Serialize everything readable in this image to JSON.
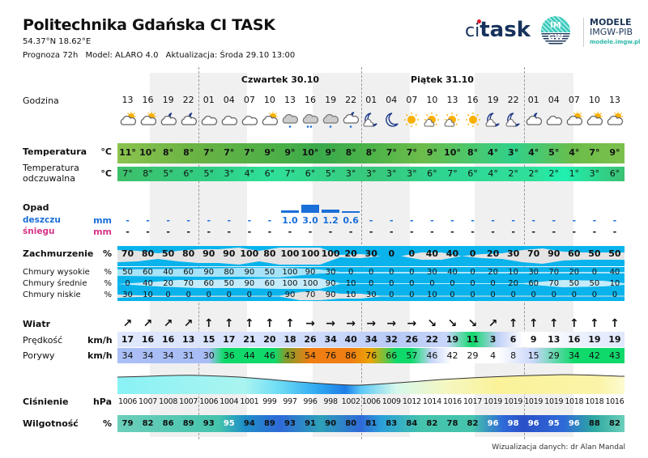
{
  "header": {
    "title": "Politechnika Gdańska CI TASK",
    "coords": "54.37°N  18.62°E",
    "forecast": "Prognoza 72h",
    "model": "Model:  ALARO 4.0",
    "updated": "Aktualizacja:  Środa 29.10 13:00"
  },
  "logos": {
    "citask_ci": "ci",
    "citask_task": "task",
    "imgw_top": "IM",
    "imgw_bottom": "GW",
    "modele_line1": "MODELE",
    "modele_line2": "IMGW-PIB",
    "modele_url": "modele.imgw.pl"
  },
  "days": [
    {
      "label": "Czwartek 30.10"
    },
    {
      "label": "Piątek 31.10"
    }
  ],
  "labels": {
    "hours": "Godzina",
    "temp": "Temperatura",
    "temp_unit": "°C",
    "feels1": "Temperatura",
    "feels2": "odczuwalna",
    "feels_unit": "°C",
    "precip": "Opad",
    "rain": "deszczu",
    "rain_unit": "mm",
    "snow": "śniegu",
    "snow_unit": "mm",
    "cloud": "Zachmurzenie",
    "cloud_unit": "%",
    "cloud_high": "Chmury wysokie",
    "cloud_mid": "Chmury średnie",
    "cloud_low": "Chmury niskie",
    "pct": "%",
    "wind": "Wiatr",
    "speed": "Prędkość",
    "gusts": "Porywy",
    "kmh": "km/h",
    "pressure": "Ciśnienie",
    "hpa": "hPa",
    "humidity": "Wilgotność",
    "hum_unit": "%"
  },
  "hours": [
    "13",
    "16",
    "19",
    "22",
    "01",
    "04",
    "07",
    "10",
    "13",
    "16",
    "19",
    "22",
    "01",
    "04",
    "07",
    "10",
    "13",
    "16",
    "19",
    "22",
    "01",
    "04",
    "07",
    "10",
    "13"
  ],
  "icons": [
    "partly-cloudy-day",
    "partly-cloudy-day",
    "partly-cloudy-night",
    "partly-cloudy-night",
    "cloudy",
    "cloudy",
    "cloudy",
    "partly-cloudy-day",
    "rain-cloud",
    "heavy-rain-cloud",
    "rain-cloud",
    "partly-cloudy-night-rain",
    "moon-cloud",
    "moon",
    "sun",
    "sun-cloud",
    "sun-cloud",
    "sun",
    "moon-cloud",
    "moon-cloud",
    "partly-cloudy-night",
    "cloudy",
    "partly-cloudy-day",
    "partly-cloudy-day",
    "partly-cloudy-day"
  ],
  "temperature": [
    "11°",
    "10°",
    "8°",
    "8°",
    "7°",
    "7°",
    "7°",
    "9°",
    "9°",
    "10°",
    "9°",
    "8°",
    "8°",
    "7°",
    "7°",
    "9°",
    "10°",
    "8°",
    "4°",
    "3°",
    "4°",
    "5°",
    "4°",
    "7°",
    "9°"
  ],
  "feels_like": [
    "7°",
    "8°",
    "5°",
    "6°",
    "5°",
    "3°",
    "4°",
    "6°",
    "7°",
    "6°",
    "5°",
    "3°",
    "3°",
    "3°",
    "3°",
    "6°",
    "7°",
    "6°",
    "4°",
    "2°",
    "2°",
    "2°",
    "1°",
    "3°",
    "6°"
  ],
  "rain": [
    "-",
    "-",
    "-",
    "-",
    "-",
    "-",
    "-",
    "-",
    "1.0",
    "3.0",
    "1.2",
    "0.6",
    "-",
    "-",
    "-",
    "-",
    "-",
    "-",
    "-",
    "-",
    "-",
    "-",
    "-",
    "-",
    "-"
  ],
  "rain_bars": [
    0,
    0,
    0,
    0,
    0,
    0,
    0,
    0,
    1.0,
    3.0,
    1.2,
    0.6,
    0,
    0,
    0,
    0,
    0,
    0,
    0,
    0,
    0,
    0,
    0,
    0,
    0
  ],
  "snow": [
    "-",
    "-",
    "-",
    "-",
    "-",
    "-",
    "-",
    "-",
    "-",
    "-",
    "-",
    "-",
    "-",
    "-",
    "-",
    "-",
    "-",
    "-",
    "-",
    "-",
    "-",
    "-",
    "-",
    "-",
    "-"
  ],
  "cloud_total": [
    "70",
    "80",
    "50",
    "80",
    "90",
    "90",
    "100",
    "80",
    "100",
    "100",
    "100",
    "20",
    "30",
    "0",
    "0",
    "40",
    "40",
    "0",
    "20",
    "30",
    "70",
    "90",
    "60",
    "50",
    "50"
  ],
  "cloud_high": [
    "50",
    "60",
    "40",
    "60",
    "90",
    "80",
    "90",
    "50",
    "100",
    "90",
    "30",
    "0",
    "0",
    "0",
    "0",
    "30",
    "40",
    "0",
    "20",
    "10",
    "30",
    "70",
    "20",
    "0",
    "40"
  ],
  "cloud_mid": [
    "0",
    "40",
    "20",
    "70",
    "60",
    "50",
    "90",
    "60",
    "100",
    "100",
    "90",
    "10",
    "0",
    "0",
    "0",
    "0",
    "0",
    "0",
    "0",
    "20",
    "60",
    "70",
    "50",
    "50",
    "10"
  ],
  "cloud_low": [
    "30",
    "10",
    "0",
    "0",
    "0",
    "0",
    "0",
    "0",
    "90",
    "70",
    "90",
    "10",
    "30",
    "0",
    "0",
    "10",
    "0",
    "0",
    "0",
    "0",
    "0",
    "0",
    "0",
    "0",
    "0"
  ],
  "wind_dir": [
    "↗",
    "↗",
    "↗",
    "↗",
    "↑",
    "↑",
    "↑",
    "↑",
    "↑",
    "→",
    "→",
    "→",
    "→",
    "→",
    "→",
    "↘",
    "↘",
    "↘",
    "↗",
    "↑",
    "↑",
    "↑",
    "↑",
    "↑",
    "↑"
  ],
  "wind_speed": [
    "17",
    "16",
    "16",
    "13",
    "15",
    "17",
    "21",
    "20",
    "18",
    "26",
    "34",
    "40",
    "34",
    "32",
    "26",
    "22",
    "19",
    "11",
    "3",
    "6",
    "9",
    "13",
    "16",
    "19",
    "19"
  ],
  "wind_gusts": [
    "34",
    "34",
    "34",
    "31",
    "30",
    "36",
    "44",
    "46",
    "43",
    "54",
    "76",
    "86",
    "76",
    "66",
    "57",
    "46",
    "42",
    "29",
    "4",
    "8",
    "15",
    "29",
    "34",
    "42",
    "43"
  ],
  "pressure": [
    "1006",
    "1007",
    "1008",
    "1007",
    "1006",
    "1004",
    "1001",
    "999",
    "997",
    "996",
    "998",
    "1002",
    "1006",
    "1009",
    "1012",
    "1014",
    "1016",
    "1017",
    "1019",
    "1019",
    "1019",
    "1019",
    "1018",
    "1018",
    "1016"
  ],
  "humidity": [
    "79",
    "82",
    "86",
    "89",
    "93",
    "95",
    "94",
    "89",
    "93",
    "91",
    "90",
    "80",
    "81",
    "83",
    "84",
    "82",
    "78",
    "82",
    "96",
    "98",
    "96",
    "95",
    "96",
    "88",
    "82"
  ],
  "colors": {
    "temp_green": "#6cb845",
    "feels_green": "#2fd58c",
    "cloud_blue": "#08b4ec",
    "cloud_gray": "#e6e6e6",
    "rain_blue": "#1a6fd8",
    "snow_pink": "#d6338a",
    "gust_green": "#10d96b",
    "gust_orange": "#f07e12",
    "wind_blue": "#c8d6fa",
    "humidity_teal": "#47c4ad",
    "humidity_blue": "#2f6ad8",
    "pressure_low": "#1e8ef0",
    "pressure_high": "#fbf29a"
  },
  "footer": "Wizualizacja danych: dr Alan Mandal"
}
